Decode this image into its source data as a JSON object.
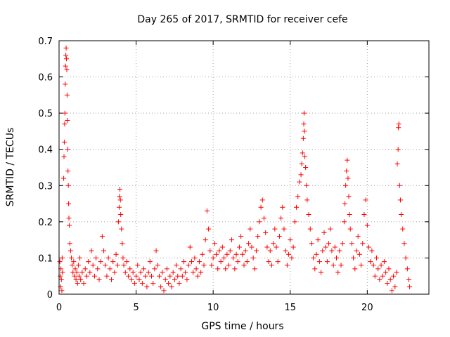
{
  "chart_data": {
    "type": "scatter",
    "title": "Day 265 of 2017, SRMTID for receiver cefe",
    "xlabel": "GPS time / hours",
    "ylabel": "SRMTID / TECUs",
    "xlim": [
      0,
      24
    ],
    "ylim": [
      0,
      0.7
    ],
    "grid": true,
    "marker": "+",
    "color": "#ff0000",
    "x_ticks": [
      {
        "value": 0,
        "label": "0"
      },
      {
        "value": 5,
        "label": "5"
      },
      {
        "value": 10,
        "label": "10"
      },
      {
        "value": 15,
        "label": "15"
      },
      {
        "value": 20,
        "label": "20"
      }
    ],
    "y_ticks": [
      {
        "value": 0,
        "label": "0"
      },
      {
        "value": 0.1,
        "label": "0.1"
      },
      {
        "value": 0.2,
        "label": "0.2"
      },
      {
        "value": 0.3,
        "label": "0.3"
      },
      {
        "value": 0.4,
        "label": "0.4"
      },
      {
        "value": 0.5,
        "label": "0.5"
      },
      {
        "value": 0.6,
        "label": "0.6"
      },
      {
        "value": 0.7,
        "label": "0.7"
      }
    ],
    "series": [
      {
        "name": "SRMTID",
        "points": [
          [
            0.05,
            0.09
          ],
          [
            0.08,
            0.05
          ],
          [
            0.1,
            0.02
          ],
          [
            0.12,
            0.07
          ],
          [
            0.15,
            0.04
          ],
          [
            0.18,
            0.01
          ],
          [
            0.2,
            0.1
          ],
          [
            0.22,
            0.06
          ],
          [
            0.3,
            0.32
          ],
          [
            0.32,
            0.38
          ],
          [
            0.34,
            0.42
          ],
          [
            0.36,
            0.47
          ],
          [
            0.38,
            0.5
          ],
          [
            0.4,
            0.58
          ],
          [
            0.42,
            0.63
          ],
          [
            0.44,
            0.66
          ],
          [
            0.46,
            0.68
          ],
          [
            0.48,
            0.65
          ],
          [
            0.5,
            0.62
          ],
          [
            0.52,
            0.55
          ],
          [
            0.54,
            0.48
          ],
          [
            0.56,
            0.4
          ],
          [
            0.58,
            0.34
          ],
          [
            0.6,
            0.3
          ],
          [
            0.62,
            0.25
          ],
          [
            0.64,
            0.21
          ],
          [
            0.66,
            0.19
          ],
          [
            0.7,
            0.14
          ],
          [
            0.75,
            0.12
          ],
          [
            0.8,
            0.1
          ],
          [
            0.85,
            0.08
          ],
          [
            0.9,
            0.06
          ],
          [
            0.95,
            0.09
          ],
          [
            1.0,
            0.05
          ],
          [
            1.05,
            0.07
          ],
          [
            1.1,
            0.04
          ],
          [
            1.15,
            0.06
          ],
          [
            1.2,
            0.03
          ],
          [
            1.25,
            0.08
          ],
          [
            1.3,
            0.05
          ],
          [
            1.35,
            0.1
          ],
          [
            1.4,
            0.04
          ],
          [
            1.5,
            0.06
          ],
          [
            1.6,
            0.03
          ],
          [
            1.7,
            0.07
          ],
          [
            1.8,
            0.05
          ],
          [
            1.9,
            0.09
          ],
          [
            2.0,
            0.06
          ],
          [
            2.1,
            0.12
          ],
          [
            2.2,
            0.08
          ],
          [
            2.3,
            0.05
          ],
          [
            2.4,
            0.1
          ],
          [
            2.5,
            0.07
          ],
          [
            2.6,
            0.04
          ],
          [
            2.7,
            0.09
          ],
          [
            2.8,
            0.16
          ],
          [
            2.9,
            0.12
          ],
          [
            3.0,
            0.08
          ],
          [
            3.1,
            0.05
          ],
          [
            3.2,
            0.1
          ],
          [
            3.3,
            0.07
          ],
          [
            3.4,
            0.04
          ],
          [
            3.5,
            0.09
          ],
          [
            3.6,
            0.06
          ],
          [
            3.7,
            0.11
          ],
          [
            3.8,
            0.08
          ],
          [
            3.85,
            0.2
          ],
          [
            3.9,
            0.24
          ],
          [
            3.92,
            0.27
          ],
          [
            3.95,
            0.29
          ],
          [
            3.98,
            0.26
          ],
          [
            4.0,
            0.22
          ],
          [
            4.05,
            0.18
          ],
          [
            4.1,
            0.14
          ],
          [
            4.15,
            0.1
          ],
          [
            4.2,
            0.08
          ],
          [
            4.3,
            0.06
          ],
          [
            4.4,
            0.09
          ],
          [
            4.5,
            0.05
          ],
          [
            4.6,
            0.07
          ],
          [
            4.7,
            0.04
          ],
          [
            4.8,
            0.06
          ],
          [
            4.9,
            0.03
          ],
          [
            5.0,
            0.05
          ],
          [
            5.1,
            0.08
          ],
          [
            5.2,
            0.04
          ],
          [
            5.3,
            0.06
          ],
          [
            5.4,
            0.03
          ],
          [
            5.5,
            0.07
          ],
          [
            5.6,
            0.05
          ],
          [
            5.7,
            0.02
          ],
          [
            5.8,
            0.06
          ],
          [
            5.9,
            0.09
          ],
          [
            6.0,
            0.05
          ],
          [
            6.1,
            0.03
          ],
          [
            6.2,
            0.07
          ],
          [
            6.3,
            0.12
          ],
          [
            6.4,
            0.08
          ],
          [
            6.5,
            0.05
          ],
          [
            6.6,
            0.02
          ],
          [
            6.7,
            0.06
          ],
          [
            6.8,
            0.01
          ],
          [
            6.9,
            0.04
          ],
          [
            7.0,
            0.07
          ],
          [
            7.1,
            0.03
          ],
          [
            7.2,
            0.05
          ],
          [
            7.3,
            0.02
          ],
          [
            7.4,
            0.06
          ],
          [
            7.5,
            0.04
          ],
          [
            7.6,
            0.08
          ],
          [
            7.7,
            0.05
          ],
          [
            7.8,
            0.03
          ],
          [
            7.9,
            0.07
          ],
          [
            8.0,
            0.05
          ],
          [
            8.1,
            0.09
          ],
          [
            8.2,
            0.06
          ],
          [
            8.3,
            0.04
          ],
          [
            8.4,
            0.08
          ],
          [
            8.5,
            0.13
          ],
          [
            8.6,
            0.09
          ],
          [
            8.7,
            0.06
          ],
          [
            8.8,
            0.1
          ],
          [
            8.9,
            0.07
          ],
          [
            9.0,
            0.05
          ],
          [
            9.1,
            0.09
          ],
          [
            9.2,
            0.06
          ],
          [
            9.3,
            0.11
          ],
          [
            9.4,
            0.08
          ],
          [
            9.5,
            0.15
          ],
          [
            9.6,
            0.23
          ],
          [
            9.7,
            0.18
          ],
          [
            9.8,
            0.12
          ],
          [
            9.9,
            0.08
          ],
          [
            10.0,
            0.1
          ],
          [
            10.1,
            0.14
          ],
          [
            10.2,
            0.11
          ],
          [
            10.3,
            0.07
          ],
          [
            10.4,
            0.12
          ],
          [
            10.5,
            0.09
          ],
          [
            10.6,
            0.13
          ],
          [
            10.7,
            0.1
          ],
          [
            10.8,
            0.07
          ],
          [
            10.9,
            0.11
          ],
          [
            11.0,
            0.08
          ],
          [
            11.1,
            0.12
          ],
          [
            11.2,
            0.15
          ],
          [
            11.3,
            0.1
          ],
          [
            11.4,
            0.07
          ],
          [
            11.5,
            0.11
          ],
          [
            11.6,
            0.09
          ],
          [
            11.7,
            0.13
          ],
          [
            11.8,
            0.16
          ],
          [
            11.9,
            0.11
          ],
          [
            12.0,
            0.08
          ],
          [
            12.1,
            0.12
          ],
          [
            12.2,
            0.09
          ],
          [
            12.3,
            0.14
          ],
          [
            12.4,
            0.18
          ],
          [
            12.5,
            0.13
          ],
          [
            12.6,
            0.1
          ],
          [
            12.7,
            0.07
          ],
          [
            12.8,
            0.12
          ],
          [
            12.9,
            0.16
          ],
          [
            13.0,
            0.2
          ],
          [
            13.1,
            0.24
          ],
          [
            13.2,
            0.26
          ],
          [
            13.3,
            0.21
          ],
          [
            13.4,
            0.17
          ],
          [
            13.5,
            0.13
          ],
          [
            13.6,
            0.09
          ],
          [
            13.7,
            0.12
          ],
          [
            13.8,
            0.08
          ],
          [
            13.9,
            0.14
          ],
          [
            14.0,
            0.18
          ],
          [
            14.1,
            0.13
          ],
          [
            14.2,
            0.09
          ],
          [
            14.3,
            0.16
          ],
          [
            14.4,
            0.21
          ],
          [
            14.5,
            0.24
          ],
          [
            14.6,
            0.18
          ],
          [
            14.7,
            0.12
          ],
          [
            14.8,
            0.08
          ],
          [
            14.9,
            0.11
          ],
          [
            15.0,
            0.15
          ],
          [
            15.1,
            0.1
          ],
          [
            15.2,
            0.13
          ],
          [
            15.3,
            0.2
          ],
          [
            15.4,
            0.24
          ],
          [
            15.5,
            0.27
          ],
          [
            15.6,
            0.31
          ],
          [
            15.7,
            0.33
          ],
          [
            15.75,
            0.36
          ],
          [
            15.8,
            0.39
          ],
          [
            15.85,
            0.43
          ],
          [
            15.88,
            0.47
          ],
          [
            15.9,
            0.5
          ],
          [
            15.92,
            0.45
          ],
          [
            15.95,
            0.38
          ],
          [
            16.0,
            0.35
          ],
          [
            16.05,
            0.3
          ],
          [
            16.1,
            0.26
          ],
          [
            16.2,
            0.22
          ],
          [
            16.3,
            0.18
          ],
          [
            16.4,
            0.14
          ],
          [
            16.5,
            0.1
          ],
          [
            16.6,
            0.07
          ],
          [
            16.7,
            0.11
          ],
          [
            16.8,
            0.15
          ],
          [
            16.9,
            0.09
          ],
          [
            17.0,
            0.06
          ],
          [
            17.1,
            0.12
          ],
          [
            17.2,
            0.17
          ],
          [
            17.3,
            0.13
          ],
          [
            17.4,
            0.09
          ],
          [
            17.5,
            0.14
          ],
          [
            17.6,
            0.18
          ],
          [
            17.7,
            0.12
          ],
          [
            17.8,
            0.08
          ],
          [
            17.9,
            0.13
          ],
          [
            18.0,
            0.1
          ],
          [
            18.1,
            0.06
          ],
          [
            18.2,
            0.12
          ],
          [
            18.3,
            0.08
          ],
          [
            18.4,
            0.14
          ],
          [
            18.5,
            0.2
          ],
          [
            18.55,
            0.25
          ],
          [
            18.6,
            0.3
          ],
          [
            18.65,
            0.34
          ],
          [
            18.7,
            0.37
          ],
          [
            18.75,
            0.32
          ],
          [
            18.8,
            0.27
          ],
          [
            18.85,
            0.22
          ],
          [
            18.9,
            0.18
          ],
          [
            19.0,
            0.14
          ],
          [
            19.1,
            0.1
          ],
          [
            19.2,
            0.07
          ],
          [
            19.3,
            0.12
          ],
          [
            19.4,
            0.16
          ],
          [
            19.5,
            0.11
          ],
          [
            19.6,
            0.08
          ],
          [
            19.7,
            0.14
          ],
          [
            19.8,
            0.22
          ],
          [
            19.9,
            0.26
          ],
          [
            20.0,
            0.19
          ],
          [
            20.1,
            0.13
          ],
          [
            20.2,
            0.09
          ],
          [
            20.3,
            0.12
          ],
          [
            20.4,
            0.08
          ],
          [
            20.5,
            0.05
          ],
          [
            20.6,
            0.1
          ],
          [
            20.7,
            0.07
          ],
          [
            20.8,
            0.04
          ],
          [
            20.9,
            0.08
          ],
          [
            21.0,
            0.05
          ],
          [
            21.1,
            0.09
          ],
          [
            21.2,
            0.06
          ],
          [
            21.3,
            0.03
          ],
          [
            21.4,
            0.07
          ],
          [
            21.5,
            0.04
          ],
          [
            21.6,
            0.01
          ],
          [
            21.7,
            0.05
          ],
          [
            21.8,
            0.02
          ],
          [
            21.9,
            0.06
          ],
          [
            21.95,
            0.36
          ],
          [
            22.0,
            0.4
          ],
          [
            22.02,
            0.46
          ],
          [
            22.05,
            0.47
          ],
          [
            22.1,
            0.3
          ],
          [
            22.15,
            0.26
          ],
          [
            22.2,
            0.22
          ],
          [
            22.3,
            0.18
          ],
          [
            22.4,
            0.14
          ],
          [
            22.5,
            0.1
          ],
          [
            22.6,
            0.07
          ],
          [
            22.7,
            0.04
          ],
          [
            22.75,
            0.02
          ]
        ]
      }
    ]
  }
}
